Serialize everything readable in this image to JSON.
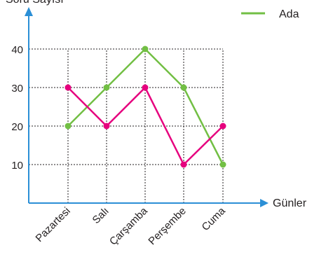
{
  "chart_data": {
    "type": "line",
    "title": "",
    "ylabel": "Soru Sayısı",
    "xlabel": "Günler",
    "categories": [
      "Pazartesi",
      "Salı",
      "Çarşamba",
      "Perşembe",
      "Cuma"
    ],
    "yticks": [
      10,
      20,
      30,
      40
    ],
    "ylim": [
      0,
      50
    ],
    "grid": true,
    "legend_position": "top-right",
    "series": [
      {
        "name": "Ada",
        "color": "#72bf44",
        "values": [
          20,
          30,
          40,
          30,
          10
        ]
      },
      {
        "name": "",
        "color": "#e6007e",
        "values": [
          30,
          20,
          30,
          10,
          20
        ]
      }
    ],
    "axis_color": "#2b8fd6"
  }
}
